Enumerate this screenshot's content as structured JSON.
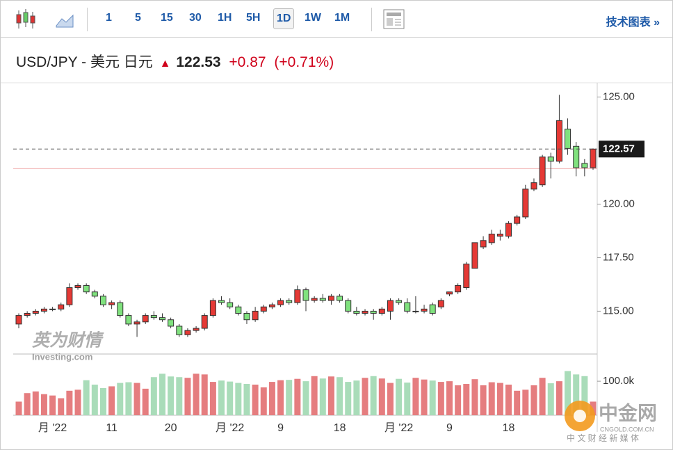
{
  "toolbar": {
    "intervals": [
      "1",
      "5",
      "15",
      "30",
      "1H",
      "5H",
      "1D",
      "1W",
      "1M"
    ],
    "link": "技术图表 »"
  },
  "header": {
    "symbol": "USD/JPY - 美元 日元",
    "price": "122.53",
    "change": "+0.87",
    "change_pct": "(+0.71%)"
  },
  "watermarks": {
    "brand_cn": "英为财情",
    "brand": "Investing.com",
    "site_cn": "中金网",
    "site": "CNGOLD.COM.CN",
    "slogan": "中 文 财 经 新 媒 体"
  },
  "chart_data": {
    "type": "candlestick",
    "categories": [
      null,
      null,
      null,
      null,
      "月 '22",
      null,
      null,
      null,
      null,
      null,
      null,
      "11",
      null,
      null,
      null,
      null,
      null,
      null,
      "20",
      null,
      null,
      null,
      null,
      null,
      null,
      "月 '22",
      null,
      null,
      null,
      null,
      null,
      "9",
      null,
      null,
      null,
      null,
      null,
      null,
      "18",
      null,
      null,
      null,
      null,
      null,
      null,
      "月 '22",
      null,
      null,
      null,
      null,
      null,
      "9",
      null,
      null,
      null,
      null,
      null,
      null,
      "18",
      null,
      null,
      null,
      null,
      null,
      null,
      null,
      null,
      null,
      null
    ],
    "open": [
      114.4,
      114.8,
      114.9,
      115.0,
      115.1,
      115.1,
      115.3,
      116.1,
      116.2,
      115.9,
      115.7,
      115.3,
      115.4,
      114.8,
      114.4,
      114.5,
      114.8,
      114.7,
      114.6,
      114.3,
      113.9,
      114.1,
      114.2,
      114.8,
      115.5,
      115.4,
      115.2,
      114.9,
      114.6,
      115.0,
      115.2,
      115.3,
      115.5,
      115.4,
      116.0,
      115.5,
      115.6,
      115.5,
      115.7,
      115.5,
      115.0,
      114.9,
      115.0,
      114.9,
      115.0,
      115.5,
      115.4,
      115.0,
      115.0,
      115.3,
      115.2,
      115.8,
      115.9,
      116.1,
      117.0,
      118.0,
      118.2,
      118.5,
      118.5,
      119.1,
      119.4,
      120.7,
      120.9,
      122.2,
      122.0,
      123.5,
      122.7,
      121.9,
      121.7
    ],
    "high": [
      114.9,
      115.0,
      115.1,
      115.2,
      115.2,
      115.4,
      116.3,
      116.3,
      116.3,
      116.0,
      115.8,
      115.5,
      115.5,
      114.9,
      114.6,
      114.9,
      115.0,
      114.9,
      114.7,
      114.4,
      114.2,
      114.3,
      114.9,
      115.6,
      115.7,
      115.6,
      115.3,
      115.0,
      115.2,
      115.3,
      115.4,
      115.6,
      115.6,
      116.2,
      116.1,
      115.7,
      115.8,
      115.8,
      115.8,
      115.6,
      115.2,
      115.1,
      115.1,
      115.2,
      115.6,
      115.6,
      115.6,
      115.7,
      115.3,
      115.4,
      115.6,
      115.9,
      116.3,
      117.3,
      118.2,
      118.5,
      118.8,
      118.8,
      119.2,
      119.5,
      120.9,
      121.2,
      122.3,
      122.4,
      125.1,
      124.0,
      122.9,
      122.1,
      122.6
    ],
    "low": [
      114.2,
      114.7,
      114.8,
      114.9,
      115.0,
      115.0,
      115.2,
      116.0,
      115.8,
      115.6,
      115.2,
      115.1,
      114.7,
      114.3,
      113.8,
      114.4,
      114.6,
      114.5,
      114.2,
      113.8,
      113.8,
      114.0,
      114.1,
      114.7,
      115.3,
      115.1,
      114.8,
      114.4,
      114.5,
      114.9,
      115.1,
      115.2,
      115.3,
      115.3,
      115.0,
      115.4,
      115.4,
      115.3,
      115.4,
      114.9,
      114.8,
      114.8,
      114.6,
      114.8,
      114.6,
      115.3,
      114.9,
      114.9,
      114.9,
      114.8,
      115.1,
      115.7,
      115.8,
      116.0,
      117.0,
      117.9,
      118.1,
      118.3,
      118.4,
      119.0,
      119.3,
      120.6,
      120.8,
      121.2,
      121.9,
      122.3,
      121.3,
      121.3,
      121.6
    ],
    "close": [
      114.8,
      114.9,
      115.0,
      115.1,
      115.1,
      115.3,
      116.1,
      116.2,
      115.9,
      115.7,
      115.3,
      115.4,
      114.8,
      114.4,
      114.5,
      114.8,
      114.7,
      114.6,
      114.3,
      113.9,
      114.1,
      114.2,
      114.8,
      115.5,
      115.4,
      115.2,
      114.9,
      114.6,
      115.0,
      115.2,
      115.3,
      115.5,
      115.4,
      116.0,
      115.5,
      115.6,
      115.5,
      115.7,
      115.5,
      115.0,
      114.9,
      115.0,
      114.9,
      115.1,
      115.5,
      115.4,
      115.0,
      115.0,
      115.1,
      114.9,
      115.5,
      115.9,
      116.2,
      117.2,
      118.2,
      118.3,
      118.6,
      118.6,
      119.1,
      119.4,
      120.7,
      121.0,
      122.2,
      122.0,
      123.9,
      122.6,
      121.7,
      121.7,
      122.57
    ],
    "volume": [
      40000,
      65000,
      70000,
      62000,
      58000,
      50000,
      72000,
      75000,
      103000,
      90000,
      80000,
      85000,
      95000,
      97000,
      95000,
      78000,
      112000,
      122000,
      114000,
      112000,
      110000,
      122000,
      120000,
      98000,
      102000,
      99000,
      95000,
      92000,
      90000,
      82000,
      98000,
      103000,
      104000,
      107000,
      100000,
      115000,
      108000,
      114000,
      112000,
      98000,
      102000,
      110000,
      115000,
      108000,
      95000,
      107000,
      96000,
      110000,
      105000,
      102000,
      98000,
      100000,
      88000,
      92000,
      106000,
      88000,
      97000,
      95000,
      90000,
      72000,
      75000,
      88000,
      110000,
      94000,
      100000,
      130000,
      120000,
      115000,
      40000
    ],
    "up_color": "#e53935",
    "down_color": "#80e27e",
    "up_volume_color": "#e57d7f",
    "down_volume_color": "#a9dcb9",
    "ylim": [
      113,
      125.6
    ],
    "yticks": [
      {
        "value": 115,
        "label": "115.00"
      },
      {
        "value": 117.5,
        "label": "117.50"
      },
      {
        "value": 120,
        "label": "120.00"
      },
      {
        "value": 125,
        "label": "125.00"
      }
    ],
    "last_price": {
      "value": 122.57,
      "label": "122.57"
    },
    "prev_close": 121.66,
    "volume_ylim": [
      0,
      180000
    ],
    "volume_ticks": [
      {
        "value": 100000,
        "label": "100.0k"
      }
    ]
  }
}
